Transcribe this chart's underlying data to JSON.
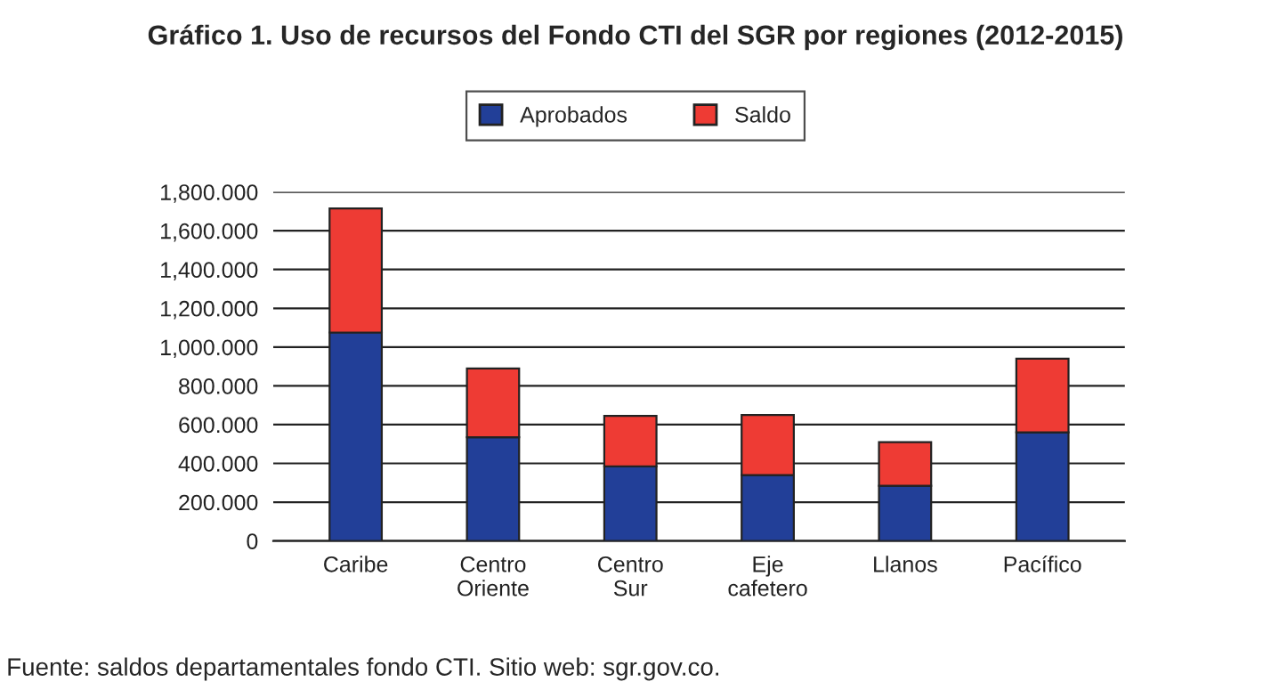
{
  "chart_data": {
    "type": "bar",
    "title": "Gráfico 1. Uso de recursos del Fondo CTI del SGR por regiones (2012-2015)",
    "categories": [
      "Caribe",
      "Centro\nOriente",
      "Centro\nSur",
      "Eje\ncafetero",
      "Llanos",
      "Pacífico"
    ],
    "stacked": true,
    "series": [
      {
        "name": "Aprobados",
        "color": "#223f98",
        "values": [
          1075,
          535,
          385,
          340,
          285,
          560
        ]
      },
      {
        "name": "Saldo",
        "color": "#ee3b34",
        "values": [
          640,
          355,
          260,
          310,
          225,
          380
        ]
      }
    ],
    "ylim": [
      0,
      1800
    ],
    "yticks": [
      0,
      {
        "value": 200,
        "label": "200.000"
      },
      {
        "value": 400,
        "label": "400.000"
      },
      {
        "value": 600,
        "label": "600.000"
      },
      {
        "value": 800,
        "label": "800.000"
      },
      {
        "value": 1000,
        "label": "1,000.000"
      },
      {
        "value": 1200,
        "label": "1,200.000"
      },
      {
        "value": 1400,
        "label": "1,400.000"
      },
      {
        "value": 1600,
        "label": "1,600.000"
      },
      {
        "value": 1800,
        "label": "1,800.000"
      }
    ],
    "grid": "y",
    "legend": "top",
    "annotations": [
      "Fuente: saldos departamentales fondo CTI. Sitio web: sgr.gov.co."
    ]
  }
}
